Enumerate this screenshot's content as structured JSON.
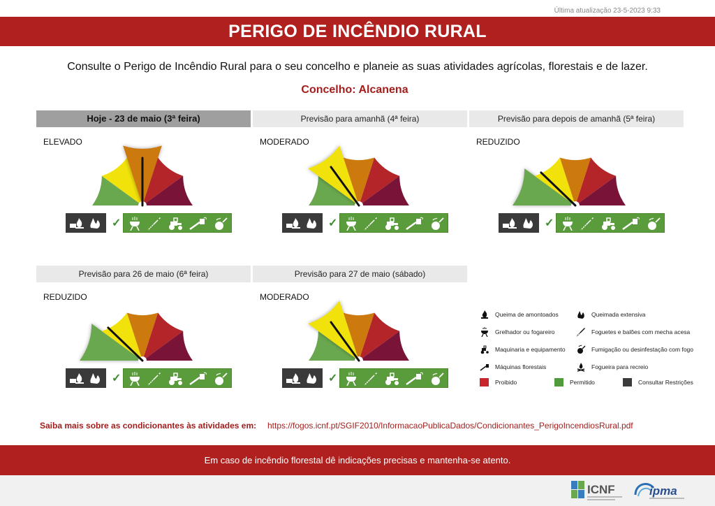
{
  "updated": "Última atualização 23-5-2023 9:33",
  "title": "PERIGO DE INCÊNDIO RURAL",
  "intro": "Consulte o Perigo de Incêndio Rural para o seu concelho e planeie as suas atividades agrícolas, florestais e de lazer.",
  "county": "Concelho: Alcanena",
  "colors": {
    "reduzido": "#6aa84f",
    "moderado": "#f2e20c",
    "elevado": "#cc7a0e",
    "muito_elevado": "#b4252a",
    "maximo": "#7a1338",
    "proibido": "#c8262c",
    "permitido": "#4f9a3a",
    "consultar": "#3b3b3b"
  },
  "panels": [
    {
      "header": "Hoje - 23 de maio (3ª feira)",
      "level": "ELEVADO",
      "level_index": 2,
      "today": true
    },
    {
      "header": "Previsão para amanhã (4ª feira)",
      "level": "MODERADO",
      "level_index": 1,
      "today": false
    },
    {
      "header": "Previsão para depois de amanhã (5ª feira)",
      "level": "REDUZIDO",
      "level_index": 0,
      "today": false
    },
    {
      "header": "Previsão para 26 de maio (6ª feira)",
      "level": "REDUZIDO",
      "level_index": 0,
      "today": false
    },
    {
      "header": "Previsão para 27 de maio (sábado)",
      "level": "MODERADO",
      "level_index": 1,
      "today": false
    }
  ],
  "legend": {
    "items": [
      {
        "label": "Queima de amontoados",
        "icon": "pile-fire-icon"
      },
      {
        "label": "Queimada extensiva",
        "icon": "extensive-fire-icon"
      },
      {
        "label": "Grelhador ou fogareiro",
        "icon": "grill-icon"
      },
      {
        "label": "Foguetes e balões com mecha acesa",
        "icon": "rocket-icon"
      },
      {
        "label": "Maquinaria e equipamento",
        "icon": "tractor-icon"
      },
      {
        "label": "Fumigação ou desinfestação com fogo",
        "icon": "fumigation-icon"
      },
      {
        "label": "Máquinas florestais",
        "icon": "chainsaw-icon"
      },
      {
        "label": "Fogueira para recreio",
        "icon": "campfire-icon"
      }
    ],
    "status": [
      {
        "label": "Proibido",
        "color": "#c8262c"
      },
      {
        "label": "Permitido",
        "color": "#4f9a3a"
      },
      {
        "label": "Consultar Restrições",
        "color": "#3b3b3b"
      }
    ]
  },
  "more_label": "Saiba mais sobre as condicionantes às atividades em:",
  "more_link": "https://fogos.icnf.pt/SGIF2010/InformacaoPublicaDados/Condicionantes_PerigoIncendiosRural.pdf",
  "footer": "Em caso de incêndio florestal dê indicações precisas e mantenha-se atento.",
  "logos": {
    "icnf": "ICNF",
    "ipma": "ipma"
  }
}
